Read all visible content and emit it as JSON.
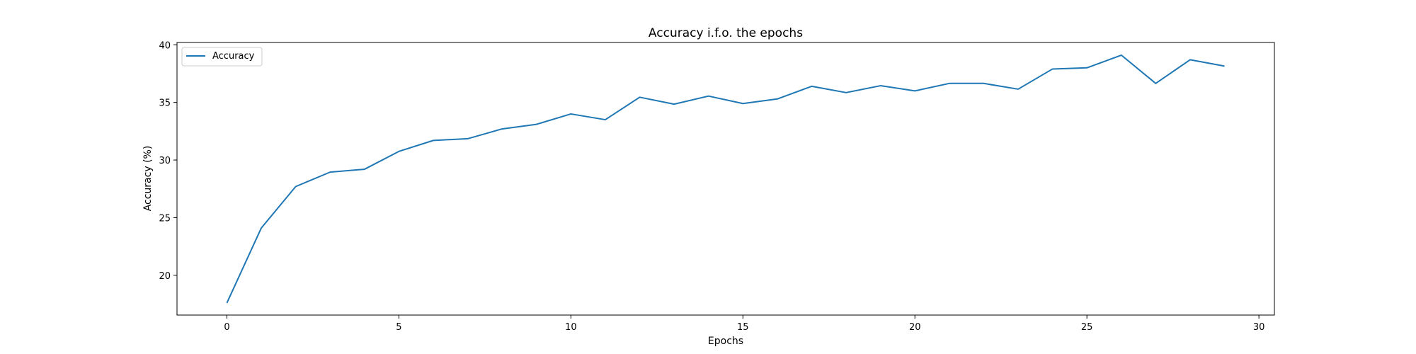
{
  "chart_data": {
    "type": "line",
    "title": "Accuracy i.f.o. the epochs",
    "xlabel": "Epochs",
    "ylabel": "Accuracy (%)",
    "xlim": [
      -1.45,
      30.45
    ],
    "ylim": [
      16.55,
      40.2
    ],
    "xticks": [
      0,
      5,
      10,
      15,
      20,
      25,
      30
    ],
    "yticks": [
      20,
      25,
      30,
      35,
      40
    ],
    "grid": false,
    "legend": {
      "placement": "top-left",
      "entries": [
        "Accuracy"
      ]
    },
    "series": [
      {
        "name": "Accuracy",
        "color": "#1f77b4",
        "x": [
          0,
          1,
          2,
          3,
          4,
          5,
          6,
          7,
          8,
          9,
          10,
          11,
          12,
          13,
          14,
          15,
          16,
          17,
          18,
          19,
          20,
          21,
          22,
          23,
          24,
          25,
          26,
          27,
          28,
          29
        ],
        "y": [
          17.6,
          24.1,
          27.7,
          28.95,
          29.2,
          30.75,
          31.7,
          31.85,
          32.7,
          33.1,
          34.0,
          33.5,
          35.45,
          34.85,
          35.55,
          34.9,
          35.3,
          36.4,
          35.85,
          36.45,
          36.0,
          36.65,
          36.65,
          36.15,
          37.9,
          38.0,
          39.1,
          36.65,
          38.7,
          38.15
        ]
      }
    ]
  }
}
